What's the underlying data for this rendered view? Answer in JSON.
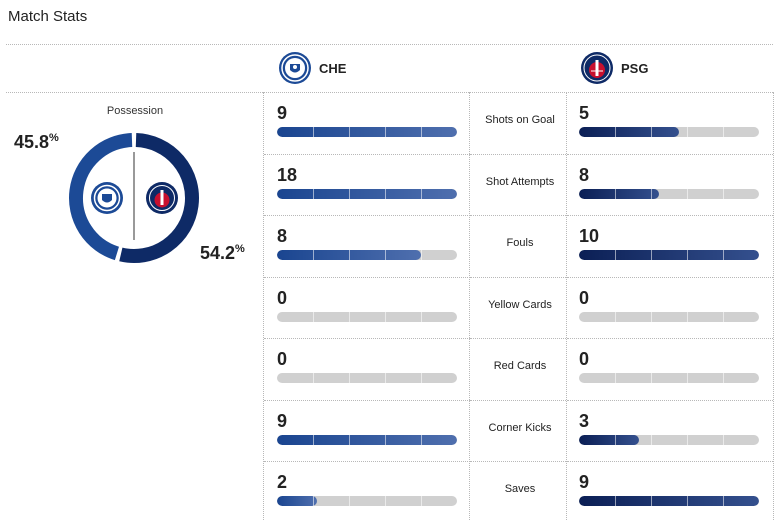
{
  "title": "Match Stats",
  "teams": {
    "home": {
      "abbr": "CHE",
      "color": "#1c4a96",
      "crest_icon": "chelsea-crest-icon"
    },
    "away": {
      "abbr": "PSG",
      "color": "#0e2a66",
      "crest_icon": "psg-crest-icon"
    }
  },
  "possession": {
    "label": "Possession",
    "home_pct": "45.8",
    "away_pct": "54.2",
    "home_value": 45.8,
    "away_value": 54.2,
    "unit": "%"
  },
  "colors": {
    "home": "#1c4a96",
    "away": "#0e2a66",
    "track": "#d0d0d0"
  },
  "stats": [
    {
      "label": "Shots on Goal",
      "home": "9",
      "away": "5",
      "home_value": 9,
      "away_value": 5,
      "max": 9
    },
    {
      "label": "Shot Attempts",
      "home": "18",
      "away": "8",
      "home_value": 18,
      "away_value": 8,
      "max": 18
    },
    {
      "label": "Fouls",
      "home": "8",
      "away": "10",
      "home_value": 8,
      "away_value": 10,
      "max": 10
    },
    {
      "label": "Yellow Cards",
      "home": "0",
      "away": "0",
      "home_value": 0,
      "away_value": 0,
      "max": 0
    },
    {
      "label": "Red Cards",
      "home": "0",
      "away": "0",
      "home_value": 0,
      "away_value": 0,
      "max": 0
    },
    {
      "label": "Corner Kicks",
      "home": "9",
      "away": "3",
      "home_value": 9,
      "away_value": 3,
      "max": 9
    },
    {
      "label": "Saves",
      "home": "2",
      "away": "9",
      "home_value": 2,
      "away_value": 9,
      "max": 9
    }
  ]
}
